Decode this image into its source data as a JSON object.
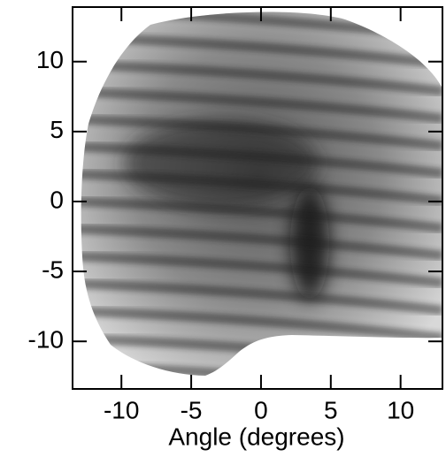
{
  "chart_data": {
    "type": "image",
    "xlabel": "Angle (degrees)",
    "xlim": [
      -13.5,
      13
    ],
    "ylim": [
      -13.4,
      13.9
    ],
    "xticks": [
      -10,
      -5,
      0,
      5,
      10
    ],
    "yticks": [
      -10,
      -5,
      0,
      5,
      10
    ]
  }
}
